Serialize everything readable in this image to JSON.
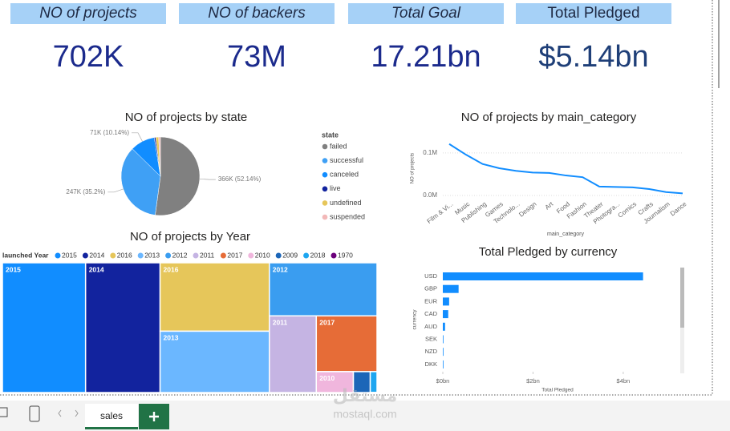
{
  "kpis": [
    {
      "label": "NO of projects",
      "value": "702K"
    },
    {
      "label": "NO of backers",
      "value": "73M"
    },
    {
      "label": "Total Goal",
      "value": "17.21bn"
    },
    {
      "label": "Total Pledged",
      "value": "$5.14bn"
    }
  ],
  "chart_data": [
    {
      "type": "pie",
      "title": "NO of projects by state",
      "legend_title": "state",
      "categories": [
        "failed",
        "successful",
        "canceled",
        "live",
        "undefined",
        "suspended"
      ],
      "values": [
        52.14,
        35.2,
        10.14,
        0.6,
        1.2,
        0.72
      ],
      "value_labels": [
        "366K (52.14%)",
        "247K (35.2%)",
        "71K (10.14%)",
        null,
        null,
        null
      ],
      "colors": [
        "#808080",
        "#3fa0f5",
        "#118dff",
        "#12239e",
        "#e6c65a",
        "#f2b8b8"
      ]
    },
    {
      "type": "line",
      "title": "NO of projects by main_category",
      "x_label": "main_category",
      "y_label": "NO of projects",
      "categories": [
        "Film & Vi...",
        "Music",
        "Publishing",
        "Games",
        "Technolo...",
        "Design",
        "Art",
        "Food",
        "Fashion",
        "Theater",
        "Photogra...",
        "Comics",
        "Crafts",
        "Journalism",
        "Dance"
      ],
      "values": [
        121000,
        96000,
        74000,
        64000,
        58000,
        54000,
        53000,
        47000,
        43000,
        21000,
        20000,
        19000,
        15000,
        8000,
        5000
      ],
      "color": "#118dff",
      "ylim": [
        0,
        130000
      ],
      "yticks": [
        {
          "value": 0,
          "label": "0.0M"
        },
        {
          "value": 100000,
          "label": "0.1M"
        }
      ],
      "grid": true
    },
    {
      "type": "treemap",
      "title": "NO of projects by Year",
      "legend_title": "launched Year",
      "categories": [
        "2015",
        "2014",
        "2016",
        "2013",
        "2012",
        "2011",
        "2017",
        "2010",
        "2009",
        "2018",
        "1970"
      ],
      "values": [
        153000,
        137000,
        106000,
        95000,
        81000,
        51000,
        48000,
        11000,
        5000,
        2000,
        10
      ],
      "colors": [
        "#118dff",
        "#12239e",
        "#e6c65a",
        "#6bb7ff",
        "#3a9df0",
        "#c5b4e3",
        "#e66c37",
        "#f0b6dd",
        "#1c66b8",
        "#1ea6f0",
        "#6b007b"
      ]
    },
    {
      "type": "hbar",
      "title": "Total Pledged by currency",
      "x_label": "Total Pledged",
      "y_label": "currency",
      "categories": [
        "USD",
        "GBP",
        "EUR",
        "CAD",
        "AUD",
        "SEK",
        "NZD",
        "DKK"
      ],
      "values": [
        4440000000,
        350000000,
        140000000,
        120000000,
        50000000,
        12000000,
        10000000,
        8000000
      ],
      "color": "#118dff",
      "xlim": [
        0,
        4500000000
      ],
      "xticks": [
        {
          "value": 0,
          "label": "$0bn"
        },
        {
          "value": 2000000000,
          "label": "$2bn"
        },
        {
          "value": 4000000000,
          "label": "$4bn"
        }
      ]
    }
  ],
  "tabs": [
    "sales"
  ],
  "watermark": {
    "arabic": "مستقل",
    "latin": "mostaql.com"
  }
}
